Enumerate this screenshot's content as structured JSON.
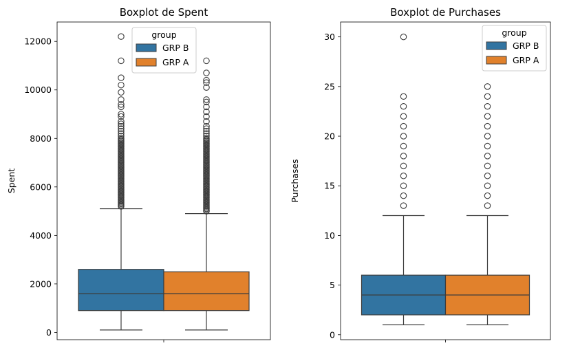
{
  "colors": {
    "grp_b": "#3274a1",
    "grp_a": "#e1812c",
    "line": "#3d3d3d",
    "axis": "#000000"
  },
  "chart_data": [
    {
      "type": "box",
      "title": "Boxplot de Spent",
      "xlabel": "",
      "ylabel": "Spent",
      "ylim": [
        -300,
        12800
      ],
      "yticks": [
        0,
        2000,
        4000,
        6000,
        8000,
        10000,
        12000
      ],
      "legend": {
        "title": "group",
        "placement": "top-center",
        "entries": [
          "GRP B",
          "GRP A"
        ]
      },
      "series": [
        {
          "name": "GRP B",
          "whisker_low": 100,
          "q1": 900,
          "median": 1600,
          "q3": 2600,
          "whisker_high": 5100,
          "outliers": [
            5200,
            5250,
            5300,
            5350,
            5400,
            5450,
            5500,
            5550,
            5600,
            5650,
            5700,
            5750,
            5800,
            5850,
            5900,
            5950,
            6000,
            6050,
            6100,
            6150,
            6200,
            6250,
            6300,
            6350,
            6400,
            6450,
            6500,
            6550,
            6600,
            6650,
            6700,
            6750,
            6800,
            6850,
            6900,
            6950,
            7000,
            7050,
            7100,
            7150,
            7200,
            7250,
            7300,
            7350,
            7400,
            7450,
            7500,
            7550,
            7600,
            7650,
            7700,
            7750,
            7800,
            7850,
            7900,
            7950,
            8000,
            8100,
            8200,
            8300,
            8400,
            8500,
            8600,
            8700,
            8900,
            9000,
            9300,
            9400,
            9600,
            9900,
            10200,
            10500,
            11200,
            12200
          ]
        },
        {
          "name": "GRP A",
          "whisker_low": 100,
          "q1": 900,
          "median": 1600,
          "q3": 2500,
          "whisker_high": 4900,
          "outliers": [
            5000,
            5050,
            5100,
            5150,
            5200,
            5250,
            5300,
            5350,
            5400,
            5450,
            5500,
            5550,
            5600,
            5650,
            5700,
            5750,
            5800,
            5850,
            5900,
            5950,
            6000,
            6050,
            6100,
            6150,
            6200,
            6250,
            6300,
            6350,
            6400,
            6450,
            6500,
            6550,
            6600,
            6650,
            6700,
            6750,
            6800,
            6850,
            6900,
            6950,
            7000,
            7050,
            7100,
            7150,
            7200,
            7250,
            7300,
            7350,
            7400,
            7450,
            7500,
            7550,
            7600,
            7650,
            7700,
            7750,
            7800,
            7850,
            7900,
            7950,
            8000,
            8100,
            8200,
            8300,
            8400,
            8500,
            8700,
            8900,
            9100,
            9300,
            9500,
            9600,
            10100,
            10300,
            10400,
            10700,
            11200
          ]
        }
      ]
    },
    {
      "type": "box",
      "title": "Boxplot de Purchases",
      "xlabel": "",
      "ylabel": "Purchases",
      "ylim": [
        -0.5,
        31.5
      ],
      "yticks": [
        0,
        5,
        10,
        15,
        20,
        25,
        30
      ],
      "legend": {
        "title": "group",
        "placement": "top-right",
        "entries": [
          "GRP B",
          "GRP A"
        ]
      },
      "series": [
        {
          "name": "GRP B",
          "whisker_low": 1,
          "q1": 2,
          "median": 4,
          "q3": 6,
          "whisker_high": 12,
          "outliers": [
            13,
            14,
            15,
            16,
            17,
            18,
            19,
            20,
            21,
            22,
            23,
            24,
            30
          ]
        },
        {
          "name": "GRP A",
          "whisker_low": 1,
          "q1": 2,
          "median": 4,
          "q3": 6,
          "whisker_high": 12,
          "outliers": [
            13,
            14,
            15,
            16,
            17,
            18,
            19,
            20,
            21,
            22,
            23,
            24,
            25
          ]
        }
      ]
    }
  ]
}
